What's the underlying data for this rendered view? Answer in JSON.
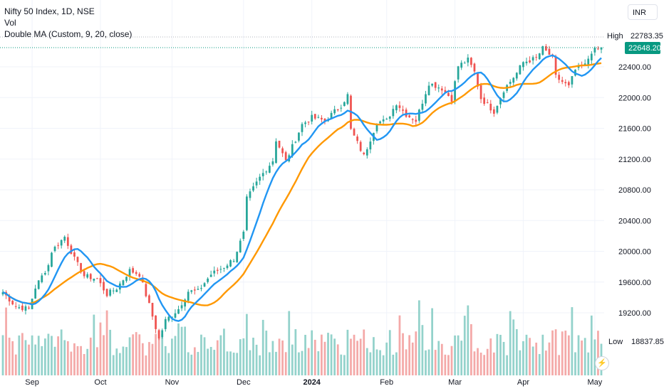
{
  "legend": {
    "title": "Nifty 50 Index, 1D, NSE",
    "volume": "Vol",
    "indicator": "Double MA (Custom, 9, 20, close)"
  },
  "currency": "INR",
  "markers": {
    "high_label": "High",
    "high_value": "22783.35",
    "last_value": "22648.20",
    "low_label": "Low",
    "low_value": "18837.85"
  },
  "colors": {
    "up": "#26a69a",
    "down": "#ef5350",
    "vol_up": "#93d2cb",
    "vol_down": "#f4a9a8",
    "ma_fast": "#2196f3",
    "ma_slow": "#ff9800",
    "last_tag": "#089981"
  },
  "chart_data": {
    "type": "candlestick",
    "title": "Nifty 50 Index, 1D, NSE",
    "y_ticks": [
      22400,
      22000,
      21600,
      21200,
      20800,
      20400,
      20000,
      19600,
      19200
    ],
    "x_ticks": [
      "Sep",
      "Oct",
      "Nov",
      "Dec",
      "2024",
      "Feb",
      "Mar",
      "Apr",
      "May"
    ],
    "ylim": [
      18700,
      23000
    ],
    "series": [
      {
        "name": "Double MA (Custom, 9, 20, close)",
        "role": "fast",
        "period": 9
      },
      {
        "name": "Double MA (Custom, 9, 20, close)",
        "role": "slow",
        "period": 20
      }
    ],
    "anchors": [
      [
        "2023-08-21",
        19470
      ],
      [
        "2023-08-25",
        19280
      ],
      [
        "2023-08-31",
        19250
      ],
      [
        "2023-09-04",
        19530
      ],
      [
        "2023-09-08",
        19820
      ],
      [
        "2023-09-11",
        20000
      ],
      [
        "2023-09-15",
        20190
      ],
      [
        "2023-09-20",
        19900
      ],
      [
        "2023-09-25",
        19680
      ],
      [
        "2023-09-29",
        19640
      ],
      [
        "2023-10-04",
        19440
      ],
      [
        "2023-10-09",
        19520
      ],
      [
        "2023-10-13",
        19750
      ],
      [
        "2023-10-18",
        19700
      ],
      [
        "2023-10-23",
        19300
      ],
      [
        "2023-10-26",
        18860
      ],
      [
        "2023-10-30",
        19100
      ],
      [
        "2023-11-03",
        19250
      ],
      [
        "2023-11-08",
        19480
      ],
      [
        "2023-11-13",
        19480
      ],
      [
        "2023-11-17",
        19700
      ],
      [
        "2023-11-23",
        19800
      ],
      [
        "2023-11-28",
        19900
      ],
      [
        "2023-12-01",
        20230
      ],
      [
        "2023-12-04",
        20680
      ],
      [
        "2023-12-08",
        20960
      ],
      [
        "2023-12-14",
        21180
      ],
      [
        "2023-12-15",
        21450
      ],
      [
        "2023-12-20",
        21170
      ],
      [
        "2023-12-27",
        21650
      ],
      [
        "2024-01-01",
        21740
      ],
      [
        "2024-01-05",
        21700
      ],
      [
        "2024-01-12",
        21900
      ],
      [
        "2024-01-16",
        22030
      ],
      [
        "2024-01-17",
        21580
      ],
      [
        "2024-01-23",
        21240
      ],
      [
        "2024-01-29",
        21680
      ],
      [
        "2024-02-01",
        21700
      ],
      [
        "2024-02-06",
        21930
      ],
      [
        "2024-02-09",
        21780
      ],
      [
        "2024-02-14",
        21700
      ],
      [
        "2024-02-20",
        22190
      ],
      [
        "2024-02-26",
        22120
      ],
      [
        "2024-02-29",
        21980
      ],
      [
        "2024-03-04",
        22410
      ],
      [
        "2024-03-07",
        22490
      ],
      [
        "2024-03-11",
        22330
      ],
      [
        "2024-03-13",
        21990
      ],
      [
        "2024-03-19",
        21820
      ],
      [
        "2024-03-22",
        22100
      ],
      [
        "2024-03-28",
        22320
      ],
      [
        "2024-04-01",
        22460
      ],
      [
        "2024-04-05",
        22510
      ],
      [
        "2024-04-09",
        22640
      ],
      [
        "2024-04-12",
        22520
      ],
      [
        "2024-04-15",
        22270
      ],
      [
        "2024-04-19",
        22140
      ],
      [
        "2024-04-23",
        22360
      ],
      [
        "2024-04-26",
        22420
      ],
      [
        "2024-04-30",
        22600
      ],
      [
        "2024-05-03",
        22648
      ]
    ],
    "high": 22783.35,
    "low": 18837.85,
    "last": 22648.2
  }
}
